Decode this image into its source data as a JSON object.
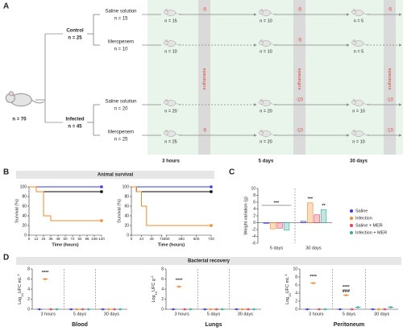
{
  "panel_labels": [
    "A",
    "B",
    "C",
    "D"
  ],
  "diagram": {
    "root": "n = 70",
    "groups": [
      {
        "name": "Control",
        "n": "n = 25",
        "arms": [
          {
            "name": "Saline solution",
            "n": "n = 15",
            "counts": [
              "n = 15",
              "n = 10",
              "n = 5"
            ],
            "removed": [
              -5,
              -5,
              -5
            ]
          },
          {
            "name": "Meropenem",
            "n": "n = 10",
            "counts": [
              "n = 10",
              "n = 10",
              "n = 5"
            ],
            "removed": [
              null,
              -5,
              null
            ]
          }
        ]
      },
      {
        "name": "Infected",
        "n": "n = 45",
        "arms": [
          {
            "name": "Saline solution",
            "n": "n = 20",
            "counts": [
              "n = 20",
              "n = 20",
              "n = 10"
            ],
            "removed": [
              null,
              -10,
              -10
            ]
          },
          {
            "name": "Meropenem",
            "n": "n = 25",
            "counts": [
              "n = 25",
              "n = 20",
              "n = 10"
            ],
            "removed": [
              -5,
              -10,
              -10
            ]
          }
        ]
      }
    ],
    "timepoints": [
      "3 hours",
      "5 days",
      "30 days"
    ],
    "euthanasia": "euthanasia"
  },
  "survival": {
    "title": "Animal survival"
  },
  "recovery": {
    "title": "Bacterial recovery"
  },
  "chart_data": [
    {
      "type": "line",
      "ylabel": "Survival (%)",
      "xlabel": "Time (hours)",
      "xlim": [
        0,
        120
      ],
      "xticks": [
        0,
        12,
        24,
        36,
        48,
        60,
        72,
        84,
        96,
        108,
        120
      ],
      "ylim": [
        0,
        100
      ],
      "yticks": [
        0,
        20,
        40,
        60,
        80,
        100
      ],
      "series": [
        {
          "color": "#3b3bd6",
          "x": [
            0,
            120
          ],
          "values": [
            100,
            100
          ]
        },
        {
          "color": "#000000",
          "x": [
            0,
            12,
            12,
            120
          ],
          "values": [
            100,
            100,
            90,
            90
          ]
        },
        {
          "color": "#f08a2c",
          "x": [
            0,
            12,
            12,
            24,
            24,
            36,
            36,
            120
          ],
          "values": [
            100,
            100,
            90,
            90,
            40,
            40,
            30,
            30
          ]
        }
      ]
    },
    {
      "type": "line",
      "ylabel": "Survival (%)",
      "xlabel": "Time (hours)",
      "xlim": [
        0,
        720
      ],
      "xticks": [
        0,
        24,
        48,
        72,
        360,
        480,
        600,
        720
      ],
      "xbreak": [
        72,
        360
      ],
      "ylim": [
        0,
        100
      ],
      "yticks": [
        0,
        20,
        40,
        60,
        80,
        100
      ],
      "series": [
        {
          "color": "#3b3bd6",
          "x": [
            0,
            720
          ],
          "values": [
            100,
            100
          ]
        },
        {
          "color": "#000000",
          "x": [
            0,
            12,
            12,
            720
          ],
          "values": [
            100,
            100,
            90,
            90
          ]
        },
        {
          "color": "#f08a2c",
          "x": [
            0,
            12,
            12,
            24,
            24,
            36,
            36,
            720
          ],
          "values": [
            100,
            100,
            90,
            90,
            60,
            60,
            20,
            20
          ]
        }
      ]
    },
    {
      "type": "bar",
      "ylabel": "Weight variation (g)",
      "categories": [
        "5 days",
        "30 days"
      ],
      "ylim": [
        -6,
        10
      ],
      "yticks": [
        -6,
        -4,
        -2,
        0,
        2,
        4,
        6,
        8,
        10
      ],
      "legend": "right",
      "series": [
        {
          "name": "Saline",
          "color": "#3b3bd6",
          "values": [
            -0.2,
            0.4
          ]
        },
        {
          "name": "Infection",
          "color": "#f08a2c",
          "values": [
            -1.8,
            5.8
          ]
        },
        {
          "name": "Saline + MER",
          "color": "#e0435a",
          "values": [
            -1.6,
            2.3
          ]
        },
        {
          "name": "Infection + MER",
          "color": "#3aa8a0",
          "values": [
            -2.2,
            3.8
          ]
        }
      ],
      "annotations": [
        "***",
        "***",
        "**"
      ]
    },
    {
      "type": "dot",
      "title": "Blood",
      "ylabel": {
        "base": "Log",
        "sub": "10",
        "main": "UFC mL",
        "sup": "-1"
      },
      "categories": [
        "3 hours",
        "5 days",
        "30 days"
      ],
      "ylim": [
        0,
        8
      ],
      "yticks": [
        0,
        2,
        4,
        6,
        8
      ],
      "series": [
        {
          "color": "#3b3bd6",
          "values": [
            0,
            0,
            0
          ]
        },
        {
          "color": "#f08a2c",
          "values": [
            6,
            0,
            0
          ]
        },
        {
          "color": "#e0435a",
          "values": [
            0,
            0,
            0
          ]
        },
        {
          "color": "#3aa8a0",
          "values": [
            0,
            0,
            0
          ]
        }
      ],
      "annotations": [
        "****"
      ]
    },
    {
      "type": "dot",
      "title": "Lungs",
      "ylabel": {
        "base": "Log",
        "sub": "10",
        "main": "UFC g",
        "sup": "-1"
      },
      "categories": [
        "3 hours",
        "5 days",
        "30 days"
      ],
      "ylim": [
        0,
        8
      ],
      "yticks": [
        0,
        2,
        4,
        6,
        8
      ],
      "series": [
        {
          "color": "#3b3bd6",
          "values": [
            0,
            0,
            0
          ]
        },
        {
          "color": "#f08a2c",
          "values": [
            4.5,
            0,
            0
          ]
        },
        {
          "color": "#e0435a",
          "values": [
            0,
            0,
            0
          ]
        },
        {
          "color": "#3aa8a0",
          "values": [
            0,
            0,
            0
          ]
        }
      ],
      "annotations": [
        "****"
      ]
    },
    {
      "type": "dot",
      "title": "Peritoneum",
      "ylabel": {
        "base": "Log",
        "sub": "10",
        "main": "UFC mL",
        "sup": "-1"
      },
      "categories": [
        "3 hours",
        "5 days",
        "30 days"
      ],
      "ylim": [
        0,
        10
      ],
      "yticks": [
        0,
        2,
        4,
        6,
        8,
        10
      ],
      "series": [
        {
          "color": "#3b3bd6",
          "values": [
            0,
            0,
            0
          ]
        },
        {
          "color": "#f08a2c",
          "values": [
            6.5,
            3.5,
            0
          ]
        },
        {
          "color": "#e0435a",
          "values": [
            0,
            0,
            0
          ]
        },
        {
          "color": "#3aa8a0",
          "values": [
            0,
            0.5,
            0.5
          ]
        }
      ],
      "annotations": [
        "****",
        "****",
        "###"
      ]
    }
  ]
}
